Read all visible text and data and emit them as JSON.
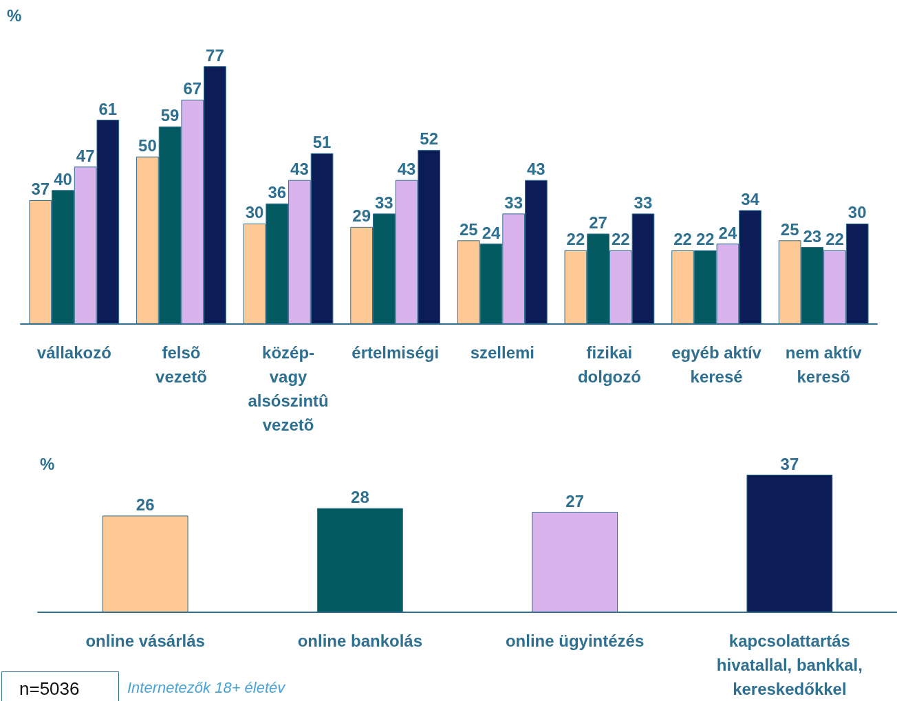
{
  "chart_data": [
    {
      "type": "bar",
      "ylabel": "%",
      "categories": [
        "vállakozó",
        "felsõ\nvezetõ",
        "közép-\nvagy\nalsószintû\nvezetõ",
        "értelmiségi",
        "szellemi",
        "fizikai\ndolgozó",
        "egyéb aktív\nkeresé",
        "nem aktív\nkeresõ"
      ],
      "series": [
        {
          "color": "#fec994",
          "values": [
            37,
            50,
            30,
            29,
            25,
            22,
            22,
            25
          ]
        },
        {
          "color": "#035a60",
          "values": [
            40,
            59,
            36,
            33,
            24,
            27,
            22,
            23
          ]
        },
        {
          "color": "#d9b3ec",
          "values": [
            47,
            67,
            43,
            43,
            33,
            22,
            24,
            22
          ]
        },
        {
          "color": "#0c1c56",
          "values": [
            61,
            77,
            51,
            52,
            43,
            33,
            34,
            30
          ]
        }
      ],
      "data_labels": true
    },
    {
      "type": "bar",
      "ylabel": "%",
      "categories": [
        "online vásárlás",
        "online bankolás",
        "online ügyintézés",
        "kapcsolattartás\nhivatallal, bankkal,\nkereskedőkkel"
      ],
      "values": [
        26,
        28,
        27,
        37
      ],
      "colors": [
        "#fec994",
        "#035a60",
        "#d9b3ec",
        "#0c1c56"
      ],
      "data_labels": true,
      "annotations": [
        "n=5036",
        "Internetezők 18+ életév"
      ]
    }
  ]
}
